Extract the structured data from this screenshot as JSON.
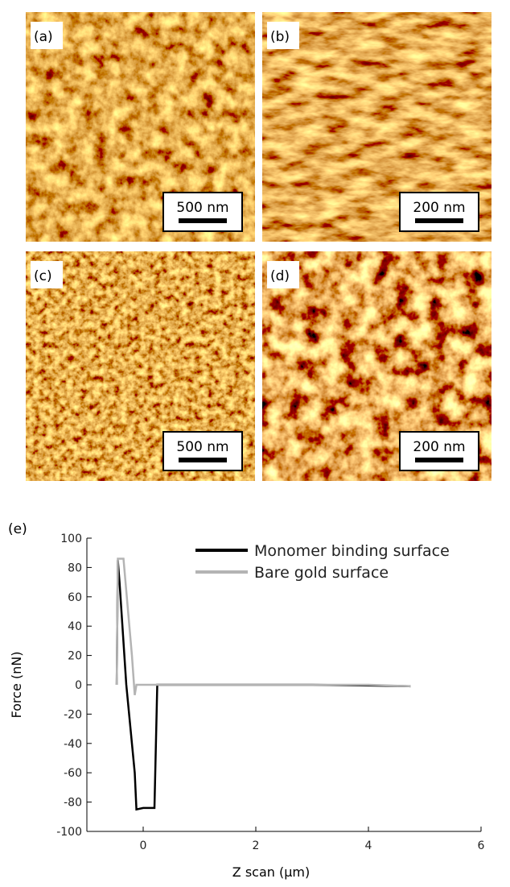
{
  "panels": [
    {
      "label": "(a)",
      "scale": "500 nm"
    },
    {
      "label": "(b)",
      "scale": "200 nm"
    },
    {
      "label": "(c)",
      "scale": "500 nm"
    },
    {
      "label": "(d)",
      "scale": "200 nm"
    }
  ],
  "chart_data": {
    "type": "line",
    "title": "(e)",
    "x_label": "Z scan (μm)",
    "y_label": "Force (nN)",
    "xlim": [
      -1,
      6
    ],
    "xticks": [
      0,
      2,
      4,
      6
    ],
    "ylim": [
      -100,
      100
    ],
    "yticks": [
      100,
      80,
      60,
      40,
      20,
      0,
      -20,
      -40,
      -60,
      -80,
      -100
    ],
    "legend": "upper right",
    "series": [
      {
        "name": "Monomer binding surface",
        "color": "#000000",
        "x": [
          -0.47,
          -0.45,
          -0.42,
          -0.3,
          -0.15,
          -0.12,
          0.0,
          0.2,
          0.25,
          1,
          2,
          3,
          4,
          4.75
        ],
        "values": [
          0,
          85,
          70,
          0,
          -60,
          -85,
          -84,
          -84,
          0,
          0,
          0,
          0,
          -0.5,
          -1
        ]
      },
      {
        "name": "Bare gold surface",
        "color": "#b4b4b4",
        "x": [
          -0.47,
          -0.45,
          -0.35,
          -0.2,
          -0.15,
          -0.12,
          0,
          1,
          2,
          3,
          4,
          4.75
        ],
        "values": [
          0,
          86,
          86,
          20,
          -7,
          0,
          0,
          0,
          0,
          0,
          0,
          -1
        ]
      }
    ]
  }
}
